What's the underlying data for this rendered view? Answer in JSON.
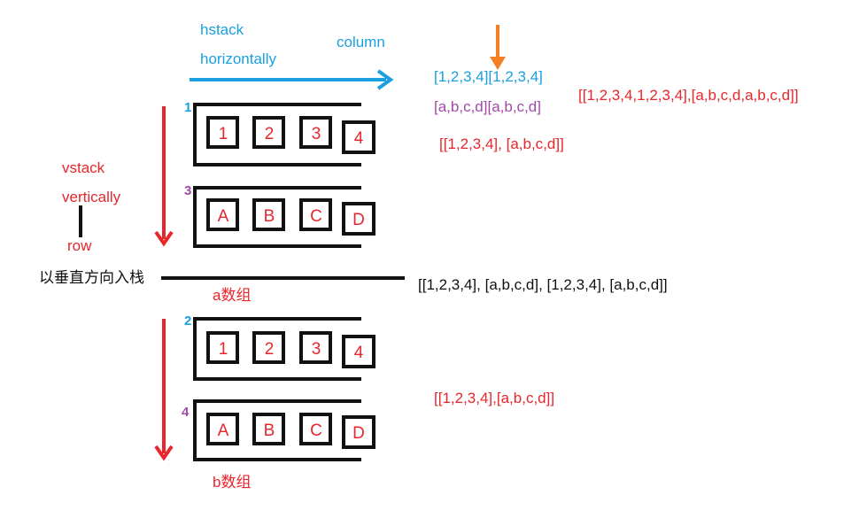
{
  "labels": {
    "hstack": "hstack",
    "horizontally": "horizontally",
    "column": "column",
    "vstack": "vstack",
    "vertically": "vertically",
    "row": "row",
    "vertical_stack_cn": "以垂直方向入栈",
    "a_array": "a数组",
    "b_array": "b数组"
  },
  "markers": {
    "m1": "1",
    "m2": "2",
    "m3": "3",
    "m4": "4"
  },
  "hstack_rows": {
    "numbers": "[1,2,3,4][1,2,3,4]",
    "letters": "[a,b,c,d][a,b,c,d]"
  },
  "results": {
    "hstack_result": "[[1,2,3,4,1,2,3,4],[a,b,c,d,a,b,c,d]]",
    "a_array_value": "[[1,2,3,4], [a,b,c,d]]",
    "vstack_result": "[[1,2,3,4], [a,b,c,d], [1,2,3,4], [a,b,c,d]]",
    "b_array_value": "[[1,2,3,4],[a,b,c,d]]"
  },
  "cells": {
    "numbers": [
      "1",
      "2",
      "3",
      "4"
    ],
    "letters": [
      "A",
      "B",
      "C",
      "D"
    ]
  },
  "colors": {
    "blue": "#1a9fe0",
    "purple": "#a24aa8",
    "red": "#e8262c",
    "orange": "#f57f24",
    "black": "#111111"
  }
}
